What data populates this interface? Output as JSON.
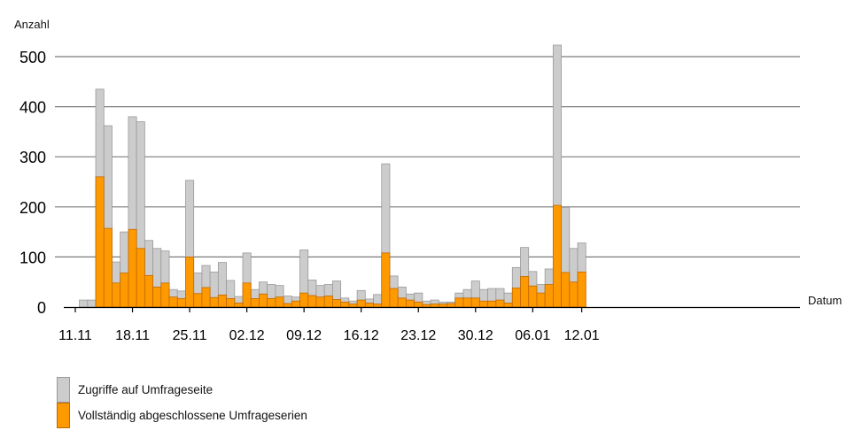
{
  "chart_data": {
    "type": "bar",
    "stacking": "overlay",
    "ylabel": "Anzahl",
    "xlabel": "Datum",
    "ylim": [
      0,
      540
    ],
    "yticks": [
      0,
      100,
      200,
      300,
      400,
      500
    ],
    "grid": true,
    "legend_placement": "bottom-left",
    "x_tick_labels": [
      "11.11",
      "18.11",
      "25.11",
      "02.12",
      "09.12",
      "16.12",
      "23.12",
      "30.12",
      "06.01",
      "12.01"
    ],
    "x_tick_dates": [
      "2019-11-11",
      "2019-11-18",
      "2019-11-25",
      "2019-12-02",
      "2019-12-09",
      "2019-12-16",
      "2019-12-23",
      "2019-12-30",
      "2020-01-06",
      "2020-01-12"
    ],
    "x": [
      "2019-11-12",
      "2019-11-13",
      "2019-11-14",
      "2019-11-15",
      "2019-11-16",
      "2019-11-17",
      "2019-11-18",
      "2019-11-19",
      "2019-11-20",
      "2019-11-21",
      "2019-11-22",
      "2019-11-23",
      "2019-11-24",
      "2019-11-25",
      "2019-11-26",
      "2019-11-27",
      "2019-11-28",
      "2019-11-29",
      "2019-11-30",
      "2019-12-01",
      "2019-12-02",
      "2019-12-03",
      "2019-12-04",
      "2019-12-05",
      "2019-12-06",
      "2019-12-07",
      "2019-12-08",
      "2019-12-09",
      "2019-12-10",
      "2019-12-11",
      "2019-12-12",
      "2019-12-13",
      "2019-12-14",
      "2019-12-15",
      "2019-12-16",
      "2019-12-17",
      "2019-12-18",
      "2019-12-19",
      "2019-12-20",
      "2019-12-21",
      "2019-12-22",
      "2019-12-23",
      "2019-12-24",
      "2019-12-25",
      "2019-12-26",
      "2019-12-27",
      "2019-12-28",
      "2019-12-29",
      "2019-12-30",
      "2019-12-31",
      "2020-01-01",
      "2020-01-02",
      "2020-01-03",
      "2020-01-04",
      "2020-01-05",
      "2020-01-06",
      "2020-01-07",
      "2020-01-08",
      "2020-01-09",
      "2020-01-10",
      "2020-01-11",
      "2020-01-12"
    ],
    "series": [
      {
        "name": "Zugriffe auf Umfrageseite",
        "color": "#cccccc",
        "values": [
          14,
          14,
          435,
          362,
          90,
          150,
          380,
          370,
          133,
          117,
          112,
          35,
          32,
          253,
          68,
          83,
          70,
          89,
          53,
          21,
          108,
          35,
          50,
          45,
          43,
          22,
          20,
          114,
          54,
          43,
          45,
          52,
          18,
          12,
          33,
          16,
          25,
          286,
          62,
          40,
          26,
          28,
          12,
          14,
          10,
          10,
          28,
          35,
          52,
          35,
          37,
          37,
          28,
          79,
          119,
          71,
          45,
          76,
          523,
          199,
          117,
          128
        ]
      },
      {
        "name": "Vollständig abgeschlossene Umfrageserien",
        "color": "#ff9900",
        "values": [
          0,
          0,
          260,
          157,
          48,
          68,
          155,
          117,
          63,
          40,
          48,
          20,
          17,
          100,
          27,
          39,
          19,
          24,
          17,
          8,
          48,
          17,
          26,
          17,
          20,
          7,
          12,
          28,
          23,
          20,
          22,
          15,
          10,
          6,
          14,
          8,
          6,
          108,
          37,
          18,
          14,
          10,
          5,
          6,
          6,
          7,
          18,
          18,
          18,
          12,
          12,
          14,
          8,
          38,
          61,
          42,
          28,
          45,
          203,
          69,
          50,
          70
        ]
      }
    ]
  }
}
